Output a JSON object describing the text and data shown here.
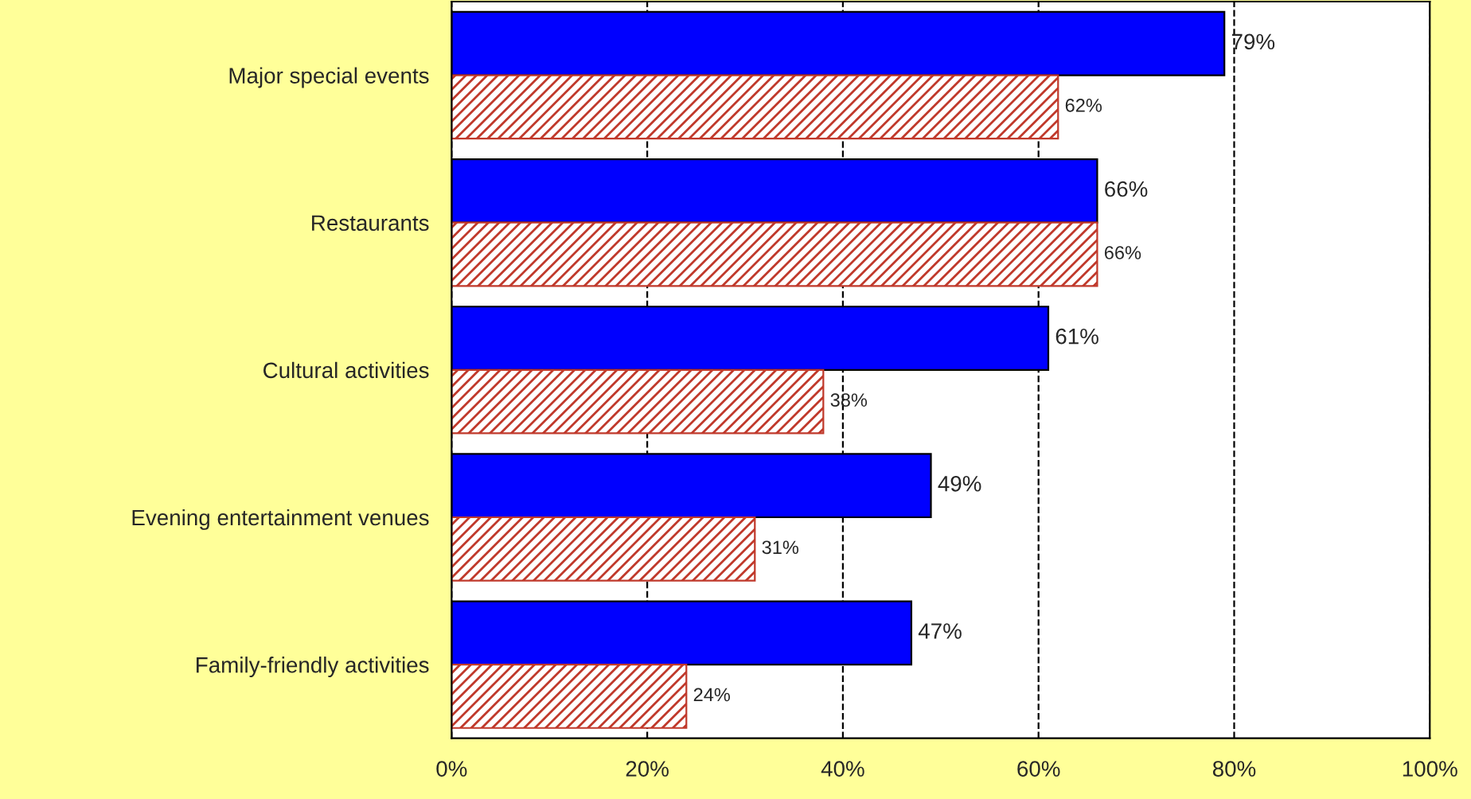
{
  "chart_data": {
    "type": "bar",
    "orientation": "horizontal",
    "categories": [
      "Major special events",
      "Restaurants",
      "Cultural activities",
      "Evening entertainment venues",
      "Family-friendly activities"
    ],
    "series": [
      {
        "color": "#0000ff",
        "values": [
          79,
          66,
          61,
          49,
          47
        ],
        "value_labels": [
          "79%",
          "66%",
          "61%",
          "49%",
          "47%"
        ]
      },
      {
        "color": "#c0392b",
        "values": [
          62,
          66,
          38,
          31,
          24
        ],
        "value_labels": [
          "62%",
          "66%",
          "38%",
          "31%",
          "24%"
        ]
      }
    ],
    "xlim": [
      0,
      100
    ],
    "xticks": [
      {
        "value": 0,
        "label": "0%"
      },
      {
        "value": 20,
        "label": "20%"
      },
      {
        "value": 40,
        "label": "40%"
      },
      {
        "value": 60,
        "label": "60%"
      },
      {
        "value": 80,
        "label": "80%"
      },
      {
        "value": 100,
        "label": "100%"
      }
    ],
    "grid": "x",
    "line_style": "dashed",
    "legend": false
  }
}
